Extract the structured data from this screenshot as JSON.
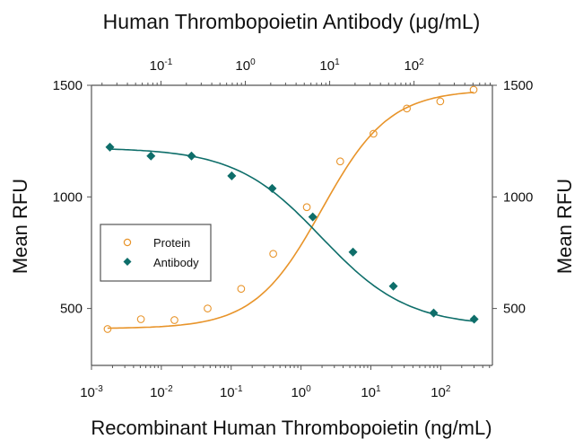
{
  "chart_data": {
    "type": "scatter",
    "title_top": "Human Thrombopoietin Antibody (μg/mL)",
    "xlabel": "Recombinant Human Thrombopoietin (ng/mL)",
    "ylabel_left": "Mean RFU",
    "ylabel_right": "Mean RFU",
    "x_bottom": {
      "scale": "log",
      "range": [
        0.001,
        550
      ],
      "ticks": [
        {
          "base": "10",
          "exp": "-3",
          "value": 0.001
        },
        {
          "base": "10",
          "exp": "-2",
          "value": 0.01
        },
        {
          "base": "10",
          "exp": "-1",
          "value": 0.1
        },
        {
          "base": "10",
          "exp": "0",
          "value": 1
        },
        {
          "base": "10",
          "exp": "1",
          "value": 10
        },
        {
          "base": "10",
          "exp": "2",
          "value": 100
        }
      ]
    },
    "x_top": {
      "scale": "log",
      "range": [
        0.015,
        850
      ],
      "ticks": [
        {
          "base": "10",
          "exp": "-1",
          "value": 0.1
        },
        {
          "base": "10",
          "exp": "0",
          "value": 1
        },
        {
          "base": "10",
          "exp": "1",
          "value": 10
        },
        {
          "base": "10",
          "exp": "2",
          "value": 100
        }
      ]
    },
    "y": {
      "range": [
        245,
        1500
      ],
      "ticks": [
        {
          "label": "500",
          "value": 500
        },
        {
          "label": "1000",
          "value": 1000
        },
        {
          "label": "1500",
          "value": 1500
        }
      ]
    },
    "legend": {
      "position": "center-left",
      "entries": [
        "Protein",
        "Antibody"
      ]
    },
    "series": [
      {
        "name": "Protein",
        "axis": "bottom",
        "marker": "open-circle",
        "color": "#e8942a",
        "x": [
          0.0017,
          0.0051,
          0.0154,
          0.046,
          0.139,
          0.4,
          1.21,
          3.64,
          10.9,
          32.8,
          98.6,
          296
        ],
        "y": [
          408,
          452,
          448,
          500,
          588,
          745,
          954,
          1159,
          1283,
          1396,
          1428,
          1480
        ]
      },
      {
        "name": "Antibody",
        "axis": "top",
        "marker": "filled-diamond",
        "color": "#0e6e6a",
        "x": [
          0.0248,
          0.076,
          0.23,
          0.69,
          2.08,
          6.3,
          18.9,
          56.9,
          171,
          516
        ],
        "y": [
          1223,
          1183,
          1183,
          1094,
          1038,
          910,
          753,
          600,
          480,
          452
        ]
      }
    ],
    "fit_curves": [
      {
        "series": "Protein",
        "type": "4PL",
        "bottom": 410,
        "top": 1480,
        "ec50_log": 0.3,
        "slope": 0.9
      },
      {
        "series": "Antibody",
        "type": "4PL",
        "bottom": 420,
        "top": 1220,
        "ec50_log": 0.9,
        "slope": 0.85
      }
    ]
  }
}
